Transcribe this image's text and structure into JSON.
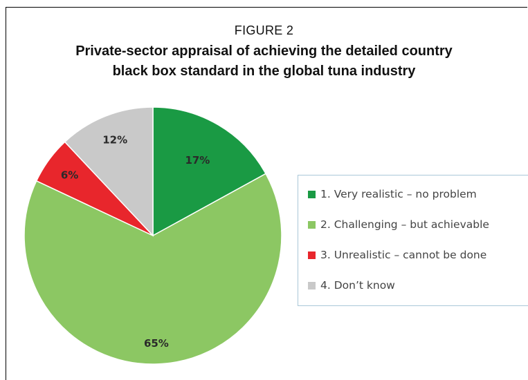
{
  "figure": {
    "label": "FIGURE 2",
    "title": "Private-sector appraisal of achieving the detailed country black box standard in the global tuna industry"
  },
  "chart_data": {
    "type": "pie",
    "title": "Private-sector appraisal of achieving the detailed country black box standard in the global tuna industry",
    "slices": [
      {
        "legend": "1.  Very realistic – no problem",
        "label": "17%",
        "value": 17,
        "color": "#1a9a44",
        "label_color": "#2a2a2a"
      },
      {
        "legend": "2.  Challenging – but achievable",
        "label": "65%",
        "value": 65,
        "color": "#8cc763",
        "label_color": "#2a2a2a"
      },
      {
        "legend": "3.  Unrealistic – cannot be done",
        "label": "6%",
        "value": 6,
        "color": "#e8262c",
        "label_color": "#2a2a2a"
      },
      {
        "legend": "4.  Don’t know",
        "label": "12%",
        "value": 12,
        "color": "#c9c9c9",
        "label_color": "#2a2a2a"
      }
    ],
    "start_angle": "12 o'clock",
    "direction": "clockwise",
    "legend_position": "right"
  }
}
